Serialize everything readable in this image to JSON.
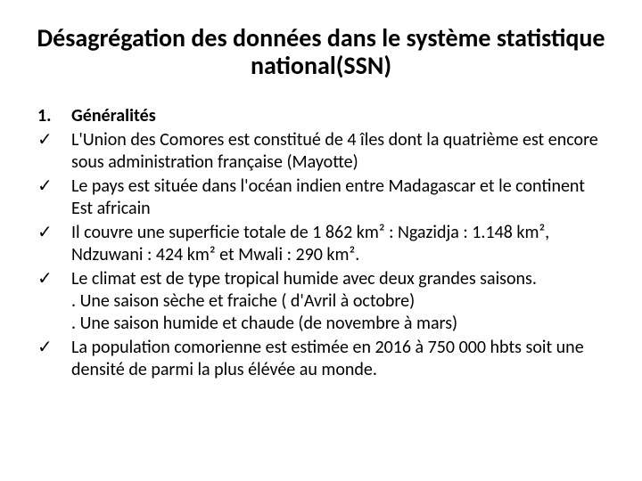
{
  "title": "Désagrégation des données dans le système statistique national(SSN)",
  "items": [
    {
      "marker": "1.",
      "markerClass": "number",
      "text": "Généralités",
      "textClass": "bold"
    },
    {
      "marker": "✓",
      "markerClass": "",
      "text": "L'Union des Comores est constitué de 4 îles dont la quatrième est encore sous administration française (Mayotte)",
      "textClass": ""
    },
    {
      "marker": "✓",
      "markerClass": "",
      "text": " Le pays est située dans l'océan indien entre Madagascar et le continent Est africain",
      "textClass": ""
    },
    {
      "marker": "✓",
      "markerClass": "",
      "text": "Il couvre une superficie totale de 1 862 km² : Ngazidja : 1.148 km², Ndzuwani : 424 km² et Mwali : 290 km².",
      "textClass": ""
    },
    {
      "marker": "✓",
      "markerClass": "",
      "text": " Le climat est de type tropical humide avec deux grandes saisons.\n. Une saison sèche et fraiche ( d'Avril à octobre)\n. Une saison humide et chaude (de novembre à mars)",
      "textClass": ""
    },
    {
      "marker": "✓",
      "markerClass": "",
      "text": " La population comorienne est estimée en 2016 à 750 000 hbts soit une densité de      parmi la plus élévée au monde.",
      "textClass": ""
    }
  ]
}
